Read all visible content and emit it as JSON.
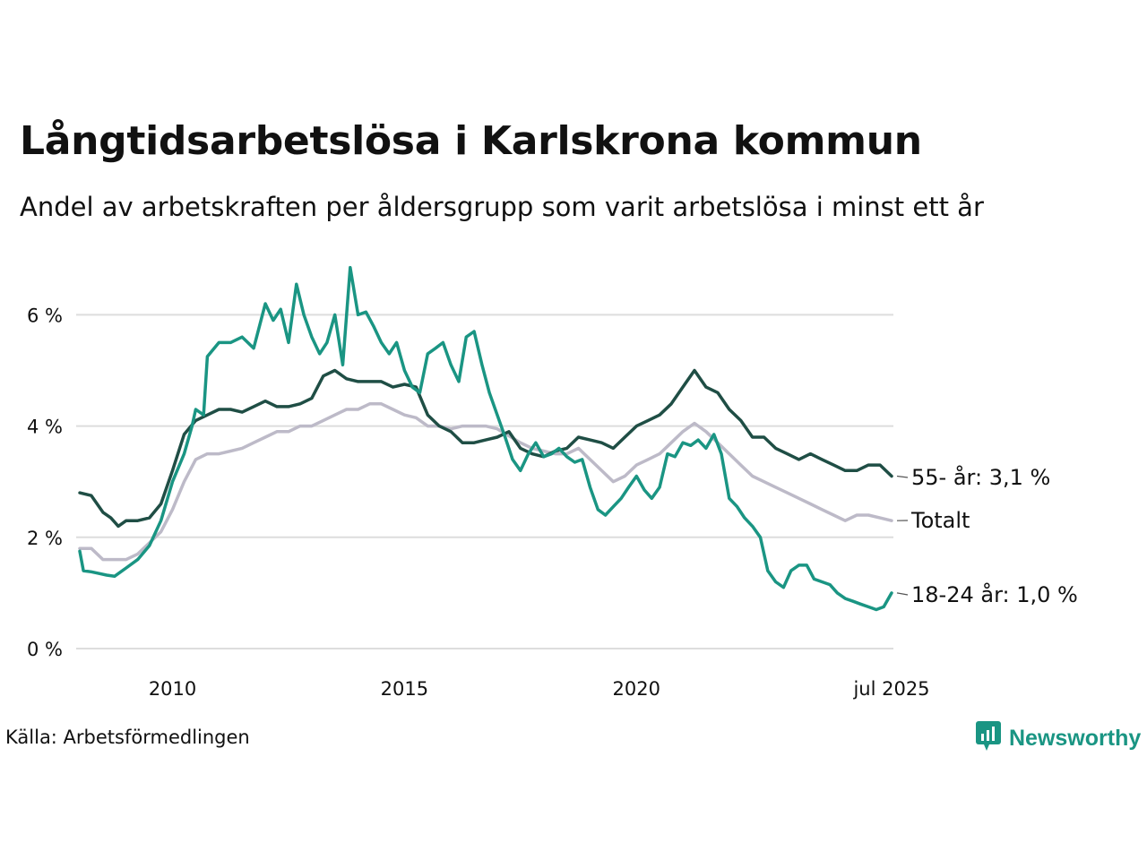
{
  "title": "Långtidsarbetslösa i Karlskrona kommun",
  "subtitle": "Andel av arbetskraften per åldersgrupp som varit arbetslösa i minst ett år",
  "source": "Källa: Arbetsförmedlingen",
  "logo": {
    "text": "Newsworthy",
    "icon": "newsworthy-logo-icon"
  },
  "colors": {
    "young": "#1a9583",
    "old": "#1f4e45",
    "total": "#bdbac8",
    "grid": "#dddddd"
  },
  "chart_data": {
    "type": "line",
    "title": "Långtidsarbetslösa i Karlskrona kommun",
    "ylim": [
      0,
      7
    ],
    "y_ticks": [
      {
        "value": 0,
        "label": "0 %"
      },
      {
        "value": 2,
        "label": "2 %"
      },
      {
        "value": 4,
        "label": "4 %"
      },
      {
        "value": 6,
        "label": "6 %"
      }
    ],
    "x_ticks": [
      {
        "value": 2010.0,
        "label": "2010"
      },
      {
        "value": 2015.0,
        "label": "2015"
      },
      {
        "value": 2020.0,
        "label": "2020"
      },
      {
        "value": 2025.5,
        "label": "jul 2025"
      }
    ],
    "xlim": [
      2008.0,
      2025.5
    ],
    "grid": true,
    "legend": "end-of-line labels",
    "series": [
      {
        "name": "55- år",
        "end_label": "55- år: 3,1 %",
        "color": "#1f4e45",
        "points": [
          [
            2008.0,
            2.8
          ],
          [
            2008.25,
            2.75
          ],
          [
            2008.5,
            2.45
          ],
          [
            2008.67,
            2.35
          ],
          [
            2008.83,
            2.2
          ],
          [
            2009.0,
            2.3
          ],
          [
            2009.25,
            2.3
          ],
          [
            2009.5,
            2.35
          ],
          [
            2009.75,
            2.6
          ],
          [
            2010.0,
            3.2
          ],
          [
            2010.25,
            3.85
          ],
          [
            2010.5,
            4.1
          ],
          [
            2010.75,
            4.2
          ],
          [
            2011.0,
            4.3
          ],
          [
            2011.25,
            4.3
          ],
          [
            2011.5,
            4.25
          ],
          [
            2011.75,
            4.35
          ],
          [
            2012.0,
            4.45
          ],
          [
            2012.25,
            4.35
          ],
          [
            2012.5,
            4.35
          ],
          [
            2012.75,
            4.4
          ],
          [
            2013.0,
            4.5
          ],
          [
            2013.25,
            4.9
          ],
          [
            2013.5,
            5.0
          ],
          [
            2013.75,
            4.85
          ],
          [
            2014.0,
            4.8
          ],
          [
            2014.25,
            4.8
          ],
          [
            2014.5,
            4.8
          ],
          [
            2014.75,
            4.7
          ],
          [
            2015.0,
            4.75
          ],
          [
            2015.25,
            4.7
          ],
          [
            2015.5,
            4.2
          ],
          [
            2015.75,
            4.0
          ],
          [
            2016.0,
            3.9
          ],
          [
            2016.25,
            3.7
          ],
          [
            2016.5,
            3.7
          ],
          [
            2016.75,
            3.75
          ],
          [
            2017.0,
            3.8
          ],
          [
            2017.25,
            3.9
          ],
          [
            2017.5,
            3.6
          ],
          [
            2017.75,
            3.5
          ],
          [
            2018.0,
            3.45
          ],
          [
            2018.25,
            3.55
          ],
          [
            2018.5,
            3.6
          ],
          [
            2018.75,
            3.8
          ],
          [
            2019.0,
            3.75
          ],
          [
            2019.25,
            3.7
          ],
          [
            2019.5,
            3.6
          ],
          [
            2019.75,
            3.8
          ],
          [
            2020.0,
            4.0
          ],
          [
            2020.25,
            4.1
          ],
          [
            2020.5,
            4.2
          ],
          [
            2020.75,
            4.4
          ],
          [
            2021.0,
            4.7
          ],
          [
            2021.25,
            5.0
          ],
          [
            2021.5,
            4.7
          ],
          [
            2021.75,
            4.6
          ],
          [
            2022.0,
            4.3
          ],
          [
            2022.25,
            4.1
          ],
          [
            2022.5,
            3.8
          ],
          [
            2022.75,
            3.8
          ],
          [
            2023.0,
            3.6
          ],
          [
            2023.25,
            3.5
          ],
          [
            2023.5,
            3.4
          ],
          [
            2023.75,
            3.5
          ],
          [
            2024.0,
            3.4
          ],
          [
            2024.25,
            3.3
          ],
          [
            2024.5,
            3.2
          ],
          [
            2024.75,
            3.2
          ],
          [
            2025.0,
            3.3
          ],
          [
            2025.25,
            3.3
          ],
          [
            2025.5,
            3.1
          ]
        ]
      },
      {
        "name": "Totalt",
        "end_label": "Totalt",
        "color": "#bdbac8",
        "points": [
          [
            2008.0,
            1.8
          ],
          [
            2008.25,
            1.8
          ],
          [
            2008.5,
            1.6
          ],
          [
            2009.0,
            1.6
          ],
          [
            2009.25,
            1.7
          ],
          [
            2009.5,
            1.9
          ],
          [
            2009.75,
            2.1
          ],
          [
            2010.0,
            2.5
          ],
          [
            2010.25,
            3.0
          ],
          [
            2010.5,
            3.4
          ],
          [
            2010.75,
            3.5
          ],
          [
            2011.0,
            3.5
          ],
          [
            2011.5,
            3.6
          ],
          [
            2011.75,
            3.7
          ],
          [
            2012.0,
            3.8
          ],
          [
            2012.25,
            3.9
          ],
          [
            2012.5,
            3.9
          ],
          [
            2012.75,
            4.0
          ],
          [
            2013.0,
            4.0
          ],
          [
            2013.25,
            4.1
          ],
          [
            2013.5,
            4.2
          ],
          [
            2013.75,
            4.3
          ],
          [
            2014.0,
            4.3
          ],
          [
            2014.25,
            4.4
          ],
          [
            2014.5,
            4.4
          ],
          [
            2014.75,
            4.3
          ],
          [
            2015.0,
            4.2
          ],
          [
            2015.25,
            4.15
          ],
          [
            2015.5,
            4.0
          ],
          [
            2015.75,
            4.0
          ],
          [
            2016.0,
            3.95
          ],
          [
            2016.25,
            4.0
          ],
          [
            2016.5,
            4.0
          ],
          [
            2016.75,
            4.0
          ],
          [
            2017.0,
            3.95
          ],
          [
            2017.5,
            3.7
          ],
          [
            2017.75,
            3.6
          ],
          [
            2018.0,
            3.55
          ],
          [
            2018.25,
            3.5
          ],
          [
            2018.5,
            3.5
          ],
          [
            2018.75,
            3.6
          ],
          [
            2019.0,
            3.4
          ],
          [
            2019.25,
            3.2
          ],
          [
            2019.5,
            3.0
          ],
          [
            2019.75,
            3.1
          ],
          [
            2020.0,
            3.3
          ],
          [
            2020.25,
            3.4
          ],
          [
            2020.5,
            3.5
          ],
          [
            2020.75,
            3.7
          ],
          [
            2021.0,
            3.9
          ],
          [
            2021.25,
            4.05
          ],
          [
            2021.5,
            3.9
          ],
          [
            2021.75,
            3.7
          ],
          [
            2022.0,
            3.5
          ],
          [
            2022.25,
            3.3
          ],
          [
            2022.5,
            3.1
          ],
          [
            2022.75,
            3.0
          ],
          [
            2023.0,
            2.9
          ],
          [
            2023.25,
            2.8
          ],
          [
            2023.5,
            2.7
          ],
          [
            2023.75,
            2.6
          ],
          [
            2024.0,
            2.5
          ],
          [
            2024.25,
            2.4
          ],
          [
            2024.5,
            2.3
          ],
          [
            2024.75,
            2.4
          ],
          [
            2025.0,
            2.4
          ],
          [
            2025.25,
            2.35
          ],
          [
            2025.5,
            2.3
          ]
        ]
      },
      {
        "name": "18-24 år",
        "end_label": "18-24 år: 1,0 %",
        "color": "#1a9583",
        "points": [
          [
            2008.0,
            1.75
          ],
          [
            2008.08,
            1.4
          ],
          [
            2008.25,
            1.38
          ],
          [
            2008.42,
            1.35
          ],
          [
            2008.58,
            1.32
          ],
          [
            2008.75,
            1.3
          ],
          [
            2009.0,
            1.45
          ],
          [
            2009.25,
            1.6
          ],
          [
            2009.5,
            1.85
          ],
          [
            2009.75,
            2.3
          ],
          [
            2010.0,
            3.0
          ],
          [
            2010.25,
            3.5
          ],
          [
            2010.42,
            4.0
          ],
          [
            2010.5,
            4.3
          ],
          [
            2010.67,
            4.2
          ],
          [
            2010.75,
            5.25
          ],
          [
            2011.0,
            5.5
          ],
          [
            2011.25,
            5.5
          ],
          [
            2011.5,
            5.6
          ],
          [
            2011.75,
            5.4
          ],
          [
            2012.0,
            6.2
          ],
          [
            2012.17,
            5.9
          ],
          [
            2012.33,
            6.1
          ],
          [
            2012.5,
            5.5
          ],
          [
            2012.67,
            6.55
          ],
          [
            2012.83,
            6.0
          ],
          [
            2013.0,
            5.6
          ],
          [
            2013.17,
            5.3
          ],
          [
            2013.33,
            5.5
          ],
          [
            2013.5,
            6.0
          ],
          [
            2013.67,
            5.1
          ],
          [
            2013.83,
            6.85
          ],
          [
            2014.0,
            6.0
          ],
          [
            2014.17,
            6.05
          ],
          [
            2014.33,
            5.8
          ],
          [
            2014.5,
            5.5
          ],
          [
            2014.67,
            5.3
          ],
          [
            2014.83,
            5.5
          ],
          [
            2015.0,
            5.0
          ],
          [
            2015.17,
            4.7
          ],
          [
            2015.33,
            4.6
          ],
          [
            2015.5,
            5.3
          ],
          [
            2015.67,
            5.4
          ],
          [
            2015.83,
            5.5
          ],
          [
            2016.0,
            5.1
          ],
          [
            2016.17,
            4.8
          ],
          [
            2016.33,
            5.6
          ],
          [
            2016.5,
            5.7
          ],
          [
            2016.67,
            5.1
          ],
          [
            2016.83,
            4.6
          ],
          [
            2017.0,
            4.2
          ],
          [
            2017.17,
            3.8
          ],
          [
            2017.33,
            3.4
          ],
          [
            2017.5,
            3.2
          ],
          [
            2017.67,
            3.5
          ],
          [
            2017.83,
            3.7
          ],
          [
            2018.0,
            3.45
          ],
          [
            2018.17,
            3.5
          ],
          [
            2018.33,
            3.6
          ],
          [
            2018.5,
            3.45
          ],
          [
            2018.67,
            3.35
          ],
          [
            2018.83,
            3.4
          ],
          [
            2019.0,
            2.9
          ],
          [
            2019.17,
            2.5
          ],
          [
            2019.33,
            2.4
          ],
          [
            2019.5,
            2.55
          ],
          [
            2019.67,
            2.7
          ],
          [
            2019.83,
            2.9
          ],
          [
            2020.0,
            3.1
          ],
          [
            2020.17,
            2.85
          ],
          [
            2020.33,
            2.7
          ],
          [
            2020.5,
            2.9
          ],
          [
            2020.67,
            3.5
          ],
          [
            2020.83,
            3.45
          ],
          [
            2021.0,
            3.7
          ],
          [
            2021.17,
            3.65
          ],
          [
            2021.33,
            3.75
          ],
          [
            2021.5,
            3.6
          ],
          [
            2021.67,
            3.85
          ],
          [
            2021.83,
            3.5
          ],
          [
            2022.0,
            2.7
          ],
          [
            2022.17,
            2.55
          ],
          [
            2022.33,
            2.35
          ],
          [
            2022.5,
            2.2
          ],
          [
            2022.67,
            2.0
          ],
          [
            2022.83,
            1.4
          ],
          [
            2023.0,
            1.2
          ],
          [
            2023.17,
            1.1
          ],
          [
            2023.33,
            1.4
          ],
          [
            2023.5,
            1.5
          ],
          [
            2023.67,
            1.5
          ],
          [
            2023.83,
            1.25
          ],
          [
            2024.0,
            1.2
          ],
          [
            2024.17,
            1.15
          ],
          [
            2024.33,
            1.0
          ],
          [
            2024.5,
            0.9
          ],
          [
            2024.67,
            0.85
          ],
          [
            2024.83,
            0.8
          ],
          [
            2025.0,
            0.75
          ],
          [
            2025.17,
            0.7
          ],
          [
            2025.33,
            0.75
          ],
          [
            2025.5,
            1.0
          ]
        ]
      }
    ]
  }
}
